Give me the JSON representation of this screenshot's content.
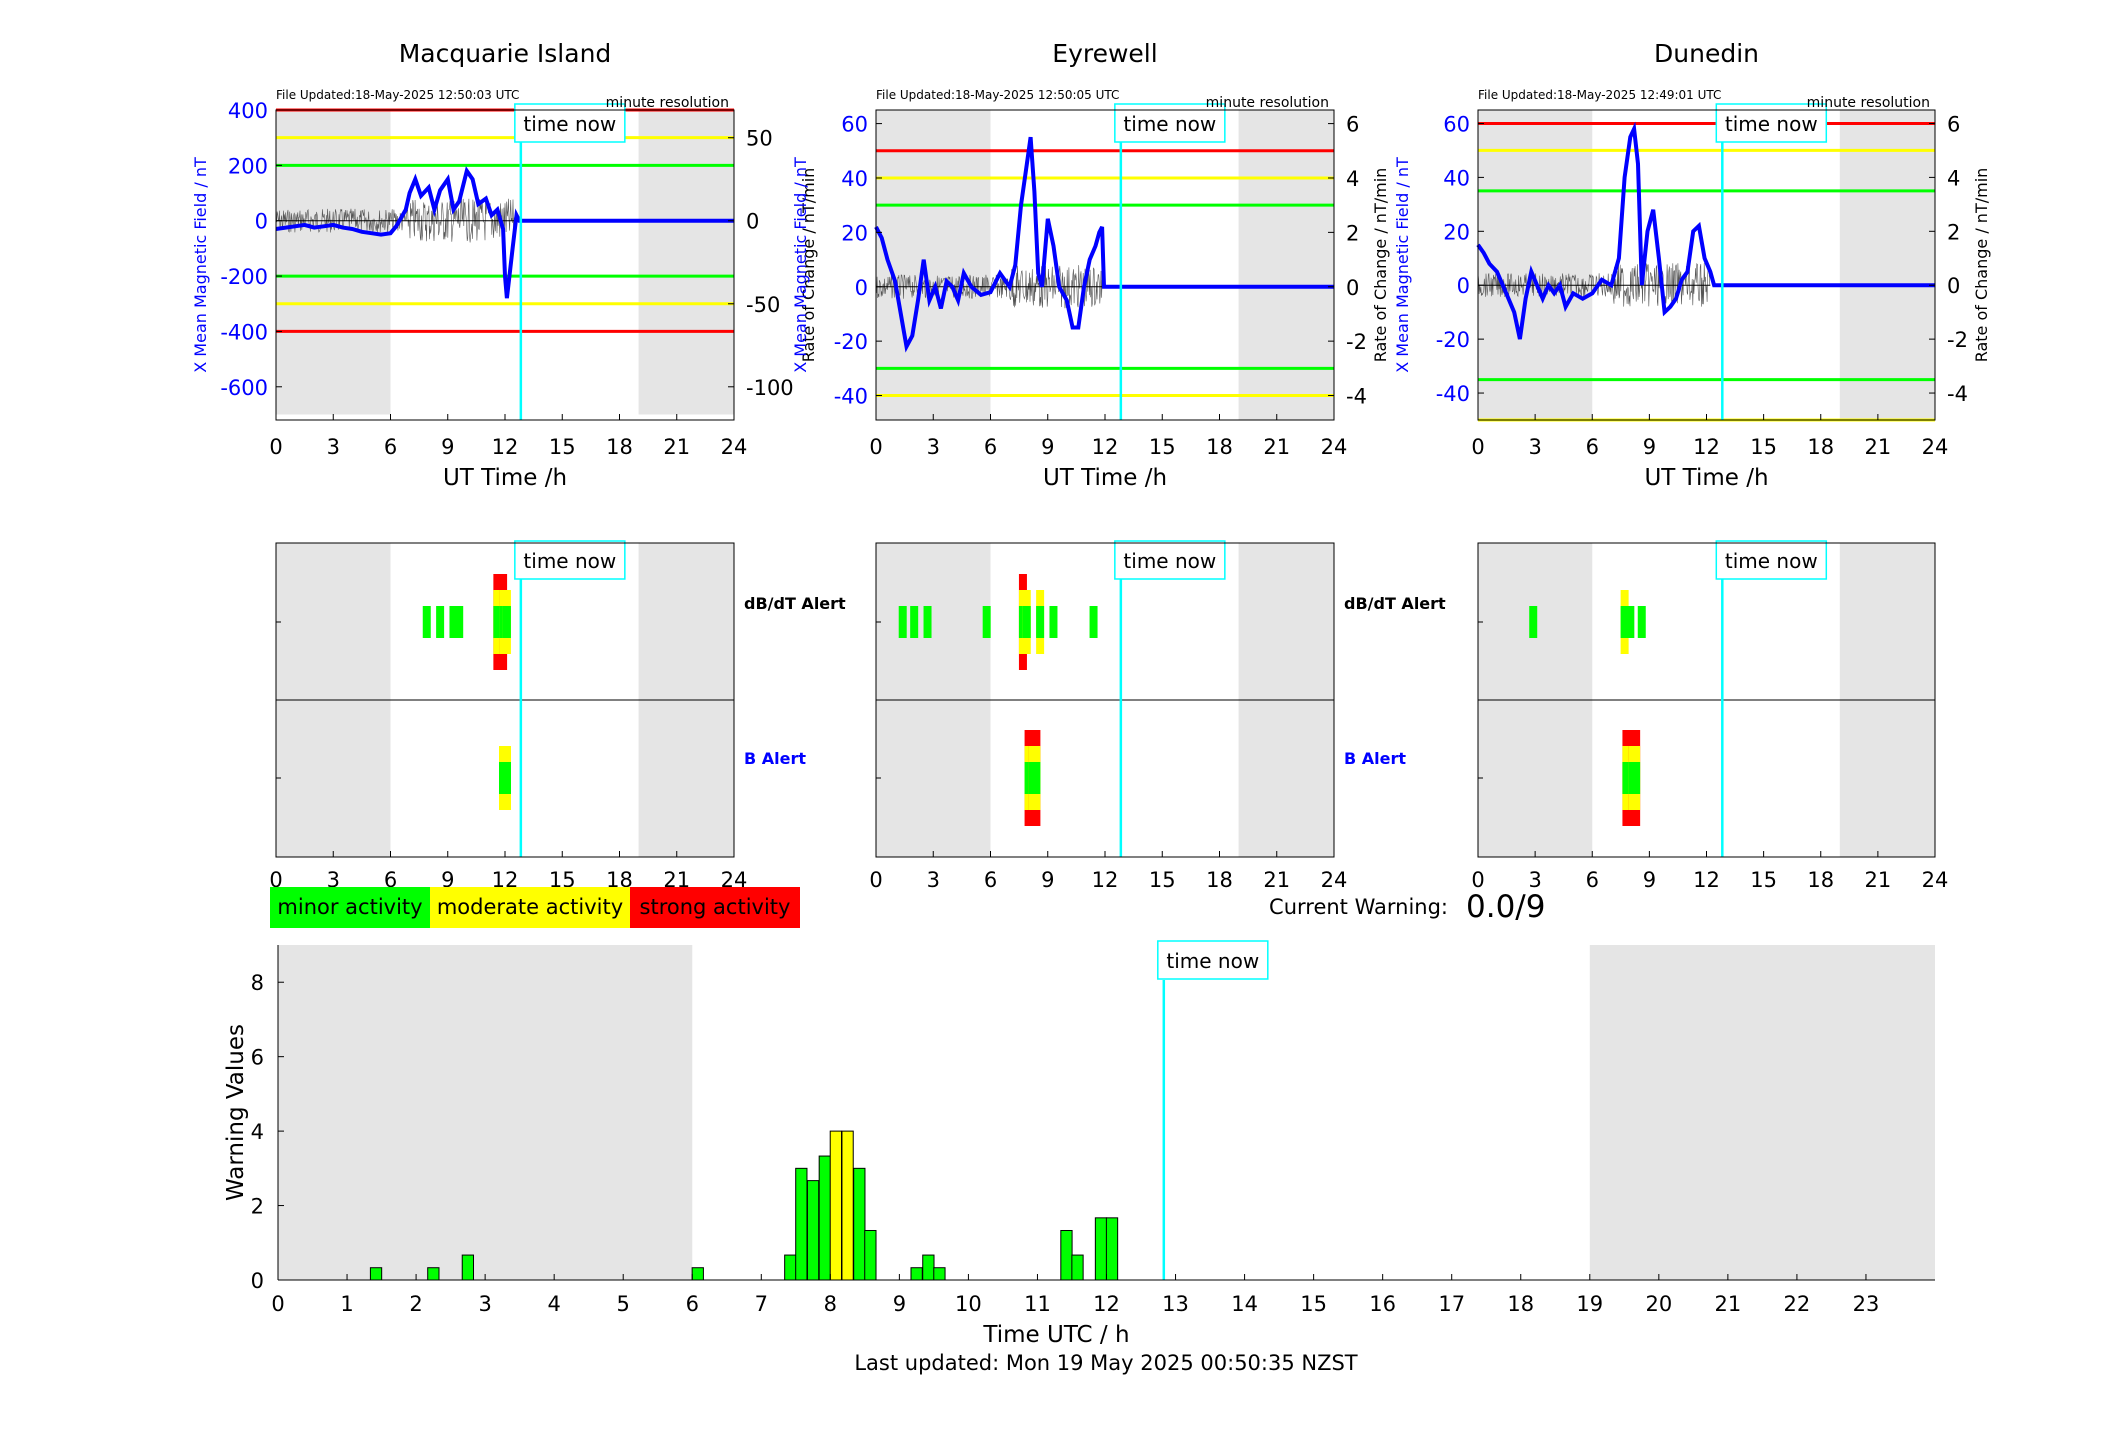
{
  "stations": [
    {
      "name": "Macquarie Island",
      "file_updated": "File Updated:18-May-2025 12:50:03 UTC",
      "resolution": "minute resolution",
      "ylabel_left": "X Mean Magnetic Field / nT",
      "ylabel_right": "Rate of Change / nT/min",
      "ylim_left": [
        -720,
        400
      ],
      "yticks_left": [
        400,
        200,
        0,
        -200,
        -400,
        -600
      ],
      "ylim_right": [
        -120,
        66.7
      ],
      "yticks_right": [
        50,
        0,
        -50,
        -100
      ],
      "thresholds": [
        {
          "value": 400,
          "color": "#ff0000"
        },
        {
          "value": 300,
          "color": "#ffff00"
        },
        {
          "value": 200,
          "color": "#00ff00"
        },
        {
          "value": -200,
          "color": "#00ff00"
        },
        {
          "value": -300,
          "color": "#ffff00"
        },
        {
          "value": -400,
          "color": "#ff0000"
        }
      ],
      "night_shading_ut": [
        [
          0,
          6
        ],
        [
          19,
          24
        ]
      ],
      "night_shading_bottom": -700,
      "field_series_ut": [
        [
          0,
          -30
        ],
        [
          0.5,
          -25
        ],
        [
          1,
          -20
        ],
        [
          1.5,
          -15
        ],
        [
          2,
          -25
        ],
        [
          2.5,
          -20
        ],
        [
          3,
          -15
        ],
        [
          3.5,
          -25
        ],
        [
          4,
          -30
        ],
        [
          4.5,
          -40
        ],
        [
          5,
          -45
        ],
        [
          5.5,
          -50
        ],
        [
          6,
          -45
        ],
        [
          6.3,
          -20
        ],
        [
          6.8,
          40
        ],
        [
          7,
          100
        ],
        [
          7.3,
          150
        ],
        [
          7.6,
          90
        ],
        [
          8,
          120
        ],
        [
          8.3,
          40
        ],
        [
          8.6,
          110
        ],
        [
          9,
          150
        ],
        [
          9.3,
          40
        ],
        [
          9.6,
          70
        ],
        [
          10,
          180
        ],
        [
          10.3,
          150
        ],
        [
          10.6,
          60
        ],
        [
          11,
          80
        ],
        [
          11.3,
          20
        ],
        [
          11.6,
          40
        ],
        [
          11.9,
          -30
        ],
        [
          12,
          -200
        ],
        [
          12.1,
          -280
        ],
        [
          12.2,
          -220
        ],
        [
          12.4,
          -100
        ],
        [
          12.6,
          20
        ],
        [
          12.75,
          0
        ],
        [
          24,
          0
        ]
      ],
      "alert_dbdt": [
        {
          "t": 7.9,
          "level": 1
        },
        {
          "t": 8.6,
          "level": 1
        },
        {
          "t": 9.3,
          "level": 1
        },
        {
          "t": 9.6,
          "level": 1
        },
        {
          "t": 11.6,
          "level": 3
        },
        {
          "t": 11.9,
          "level": 3
        },
        {
          "t": 12.1,
          "level": 2
        }
      ],
      "alert_b": [
        {
          "t": 12.0,
          "level": 2
        }
      ]
    },
    {
      "name": "Eyrewell",
      "file_updated": "File Updated:18-May-2025 12:50:05 UTC",
      "resolution": "minute resolution",
      "ylabel_left": "X Mean Magnetic Field / nT",
      "ylabel_right": "Rate of Change / nT/min",
      "ylim_left": [
        -49,
        65
      ],
      "yticks_left": [
        60,
        40,
        20,
        0,
        -20,
        -40
      ],
      "ylim_right": [
        -4.9,
        6.5
      ],
      "yticks_right": [
        6,
        4,
        2,
        0,
        -2,
        -4
      ],
      "thresholds": [
        {
          "value": 50,
          "color": "#ff0000"
        },
        {
          "value": 40,
          "color": "#ffff00"
        },
        {
          "value": 30,
          "color": "#00ff00"
        },
        {
          "value": -30,
          "color": "#00ff00"
        },
        {
          "value": -40,
          "color": "#ffff00"
        }
      ],
      "night_shading_ut": [
        [
          0,
          6
        ],
        [
          19,
          24
        ]
      ],
      "night_shading_bottom": -49,
      "field_series_ut": [
        [
          0,
          22
        ],
        [
          0.3,
          18
        ],
        [
          0.6,
          10
        ],
        [
          1,
          2
        ],
        [
          1.3,
          -10
        ],
        [
          1.6,
          -22
        ],
        [
          1.9,
          -18
        ],
        [
          2.2,
          -5
        ],
        [
          2.5,
          10
        ],
        [
          2.8,
          -5
        ],
        [
          3.1,
          0
        ],
        [
          3.4,
          -8
        ],
        [
          3.7,
          2
        ],
        [
          4,
          0
        ],
        [
          4.3,
          -5
        ],
        [
          4.6,
          5
        ],
        [
          5,
          0
        ],
        [
          5.5,
          -3
        ],
        [
          6,
          -2
        ],
        [
          6.5,
          5
        ],
        [
          7,
          0
        ],
        [
          7.3,
          8
        ],
        [
          7.6,
          30
        ],
        [
          7.9,
          45
        ],
        [
          8.1,
          55
        ],
        [
          8.3,
          35
        ],
        [
          8.5,
          5
        ],
        [
          8.7,
          0
        ],
        [
          9,
          25
        ],
        [
          9.3,
          15
        ],
        [
          9.6,
          0
        ],
        [
          10,
          -5
        ],
        [
          10.3,
          -15
        ],
        [
          10.6,
          -15
        ],
        [
          10.9,
          0
        ],
        [
          11.2,
          10
        ],
        [
          11.5,
          15
        ],
        [
          11.7,
          20
        ],
        [
          11.85,
          22
        ],
        [
          11.95,
          0
        ],
        [
          12.8,
          0
        ],
        [
          24,
          0
        ]
      ],
      "alert_dbdt": [
        {
          "t": 1.4,
          "level": 1
        },
        {
          "t": 2.0,
          "level": 1
        },
        {
          "t": 2.7,
          "level": 1
        },
        {
          "t": 5.8,
          "level": 1
        },
        {
          "t": 7.7,
          "level": 3
        },
        {
          "t": 7.9,
          "level": 2
        },
        {
          "t": 8.6,
          "level": 2
        },
        {
          "t": 9.3,
          "level": 1
        },
        {
          "t": 11.4,
          "level": 1
        }
      ],
      "alert_b": [
        {
          "t": 8.1,
          "level": 3
        },
        {
          "t": 8.3,
          "level": 3
        }
      ]
    },
    {
      "name": "Dunedin",
      "file_updated": "File Updated:18-May-2025 12:49:01 UTC",
      "resolution": "minute resolution",
      "ylabel_left": "X Mean Magnetic Field / nT",
      "ylabel_right": "Rate of Change / nT/min",
      "ylim_left": [
        -50,
        65
      ],
      "yticks_left": [
        60,
        40,
        20,
        0,
        -20,
        -40
      ],
      "ylim_right": [
        -5,
        6.5
      ],
      "yticks_right": [
        6,
        4,
        2,
        0,
        -2,
        -4
      ],
      "thresholds": [
        {
          "value": 60,
          "color": "#ff0000"
        },
        {
          "value": 50,
          "color": "#ffff00"
        },
        {
          "value": 35,
          "color": "#00ff00"
        },
        {
          "value": -35,
          "color": "#00ff00"
        },
        {
          "value": -50,
          "color": "#ffff00"
        }
      ],
      "night_shading_ut": [
        [
          0,
          6
        ],
        [
          19,
          24
        ]
      ],
      "night_shading_bottom": -50,
      "field_series_ut": [
        [
          0,
          15
        ],
        [
          0.3,
          12
        ],
        [
          0.6,
          8
        ],
        [
          1,
          5
        ],
        [
          1.3,
          0
        ],
        [
          1.6,
          -5
        ],
        [
          1.9,
          -10
        ],
        [
          2.2,
          -20
        ],
        [
          2.5,
          -5
        ],
        [
          2.8,
          5
        ],
        [
          3.1,
          0
        ],
        [
          3.4,
          -5
        ],
        [
          3.7,
          0
        ],
        [
          4,
          -3
        ],
        [
          4.3,
          0
        ],
        [
          4.6,
          -8
        ],
        [
          5,
          -3
        ],
        [
          5.5,
          -5
        ],
        [
          6,
          -3
        ],
        [
          6.5,
          2
        ],
        [
          7,
          0
        ],
        [
          7.4,
          10
        ],
        [
          7.7,
          40
        ],
        [
          8,
          55
        ],
        [
          8.2,
          58
        ],
        [
          8.4,
          45
        ],
        [
          8.6,
          0
        ],
        [
          8.9,
          20
        ],
        [
          9.2,
          28
        ],
        [
          9.5,
          10
        ],
        [
          9.8,
          -10
        ],
        [
          10.1,
          -8
        ],
        [
          10.4,
          -5
        ],
        [
          10.7,
          2
        ],
        [
          11,
          5
        ],
        [
          11.3,
          20
        ],
        [
          11.6,
          22
        ],
        [
          11.9,
          10
        ],
        [
          12.2,
          5
        ],
        [
          12.4,
          0
        ],
        [
          24,
          0
        ]
      ],
      "alert_dbdt": [
        {
          "t": 2.9,
          "level": 1
        },
        {
          "t": 7.7,
          "level": 2
        },
        {
          "t": 8.0,
          "level": 1
        },
        {
          "t": 8.6,
          "level": 1
        }
      ],
      "alert_b": [
        {
          "t": 7.9,
          "level": 3
        },
        {
          "t": 8.2,
          "level": 3
        }
      ]
    }
  ],
  "time_now_label": "time now",
  "time_now_ut": 12.83,
  "xlabel_top": "UT Time /h",
  "xticks_top": [
    0,
    3,
    6,
    9,
    12,
    15,
    18,
    21,
    24
  ],
  "alert_labels": {
    "dbdt": "dB/dT Alert",
    "b": "B Alert"
  },
  "legend": [
    {
      "label": "minor activity",
      "color": "#00ff00"
    },
    {
      "label": "moderate activity",
      "color": "#ffff00"
    },
    {
      "label": "strong activity",
      "color": "#ff0000"
    }
  ],
  "current_warning": {
    "label": "Current Warning:",
    "value": "0.0/9"
  },
  "chart_data": {
    "type": "bar",
    "title": "",
    "xlabel": "Time UTC / h",
    "ylabel": "Warning Values",
    "xlim": [
      0,
      24
    ],
    "ylim": [
      0,
      9
    ],
    "xticks": [
      0,
      1,
      2,
      3,
      4,
      5,
      6,
      7,
      8,
      9,
      10,
      11,
      12,
      13,
      14,
      15,
      16,
      17,
      18,
      19,
      20,
      21,
      22,
      23
    ],
    "yticks": [
      0,
      2,
      4,
      6,
      8
    ],
    "shaded_regions": [
      [
        0,
        6
      ],
      [
        19,
        24
      ]
    ],
    "time_now": 12.83,
    "bins": [
      {
        "t": 1.42,
        "value": 0.33
      },
      {
        "t": 2.25,
        "value": 0.33
      },
      {
        "t": 2.75,
        "value": 0.67
      },
      {
        "t": 6.08,
        "value": 0.33
      },
      {
        "t": 7.42,
        "value": 0.67
      },
      {
        "t": 7.58,
        "value": 3.0
      },
      {
        "t": 7.75,
        "value": 2.67
      },
      {
        "t": 7.92,
        "value": 3.33
      },
      {
        "t": 8.08,
        "value": 4.0
      },
      {
        "t": 8.25,
        "value": 4.0
      },
      {
        "t": 8.42,
        "value": 3.0
      },
      {
        "t": 8.58,
        "value": 1.33
      },
      {
        "t": 9.25,
        "value": 0.33
      },
      {
        "t": 9.42,
        "value": 0.67
      },
      {
        "t": 9.58,
        "value": 0.33
      },
      {
        "t": 11.42,
        "value": 1.33
      },
      {
        "t": 11.58,
        "value": 0.67
      },
      {
        "t": 11.92,
        "value": 1.67
      },
      {
        "t": 12.08,
        "value": 1.67
      }
    ],
    "level_colors": {
      "minor": "#00ff00",
      "moderate": "#ffff00",
      "strong": "#ff0000"
    },
    "moderate_threshold": 3.5
  },
  "last_updated": "Last updated: Mon 19 May 2025 00:50:35 NZST",
  "colors": {
    "field_line": "#0000ff",
    "time_now": "#00ffff",
    "shade": "#e5e5e5",
    "left_axis_text": "#0000ff"
  }
}
